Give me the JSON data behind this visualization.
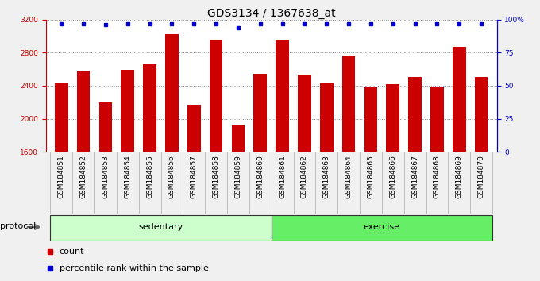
{
  "title": "GDS3134 / 1367638_at",
  "categories": [
    "GSM184851",
    "GSM184852",
    "GSM184853",
    "GSM184854",
    "GSM184855",
    "GSM184856",
    "GSM184857",
    "GSM184858",
    "GSM184859",
    "GSM184860",
    "GSM184861",
    "GSM184862",
    "GSM184863",
    "GSM184864",
    "GSM184865",
    "GSM184866",
    "GSM184867",
    "GSM184868",
    "GSM184869",
    "GSM184870"
  ],
  "bar_values": [
    2440,
    2580,
    2200,
    2590,
    2660,
    3020,
    2170,
    2960,
    1930,
    2540,
    2960,
    2530,
    2440,
    2760,
    2380,
    2420,
    2510,
    2390,
    2870,
    2510
  ],
  "percentile_values": [
    97,
    97,
    96,
    97,
    97,
    97,
    97,
    97,
    94,
    97,
    97,
    97,
    97,
    97,
    97,
    97,
    97,
    97,
    97,
    97
  ],
  "bar_color": "#cc0000",
  "percentile_color": "#0000cc",
  "ylim_left": [
    1600,
    3200
  ],
  "ylim_right": [
    0,
    100
  ],
  "yticks_left": [
    1600,
    2000,
    2400,
    2800,
    3200
  ],
  "yticks_right": [
    0,
    25,
    50,
    75,
    100
  ],
  "ytick_right_labels": [
    "0",
    "25",
    "50",
    "75",
    "100%"
  ],
  "groups": [
    {
      "label": "sedentary",
      "start": 0,
      "end": 10,
      "color": "#ccffcc"
    },
    {
      "label": "exercise",
      "start": 10,
      "end": 20,
      "color": "#66ee66"
    }
  ],
  "protocol_label": "protocol",
  "legend_count_label": "count",
  "legend_percentile_label": "percentile rank within the sample",
  "fig_bg_color": "#f0f0f0",
  "plot_bg_color": "#ffffff",
  "xtick_bg_color": "#c8c8c8",
  "grid_color": "#888888",
  "title_fontsize": 10,
  "tick_fontsize": 6.5,
  "label_fontsize": 8
}
